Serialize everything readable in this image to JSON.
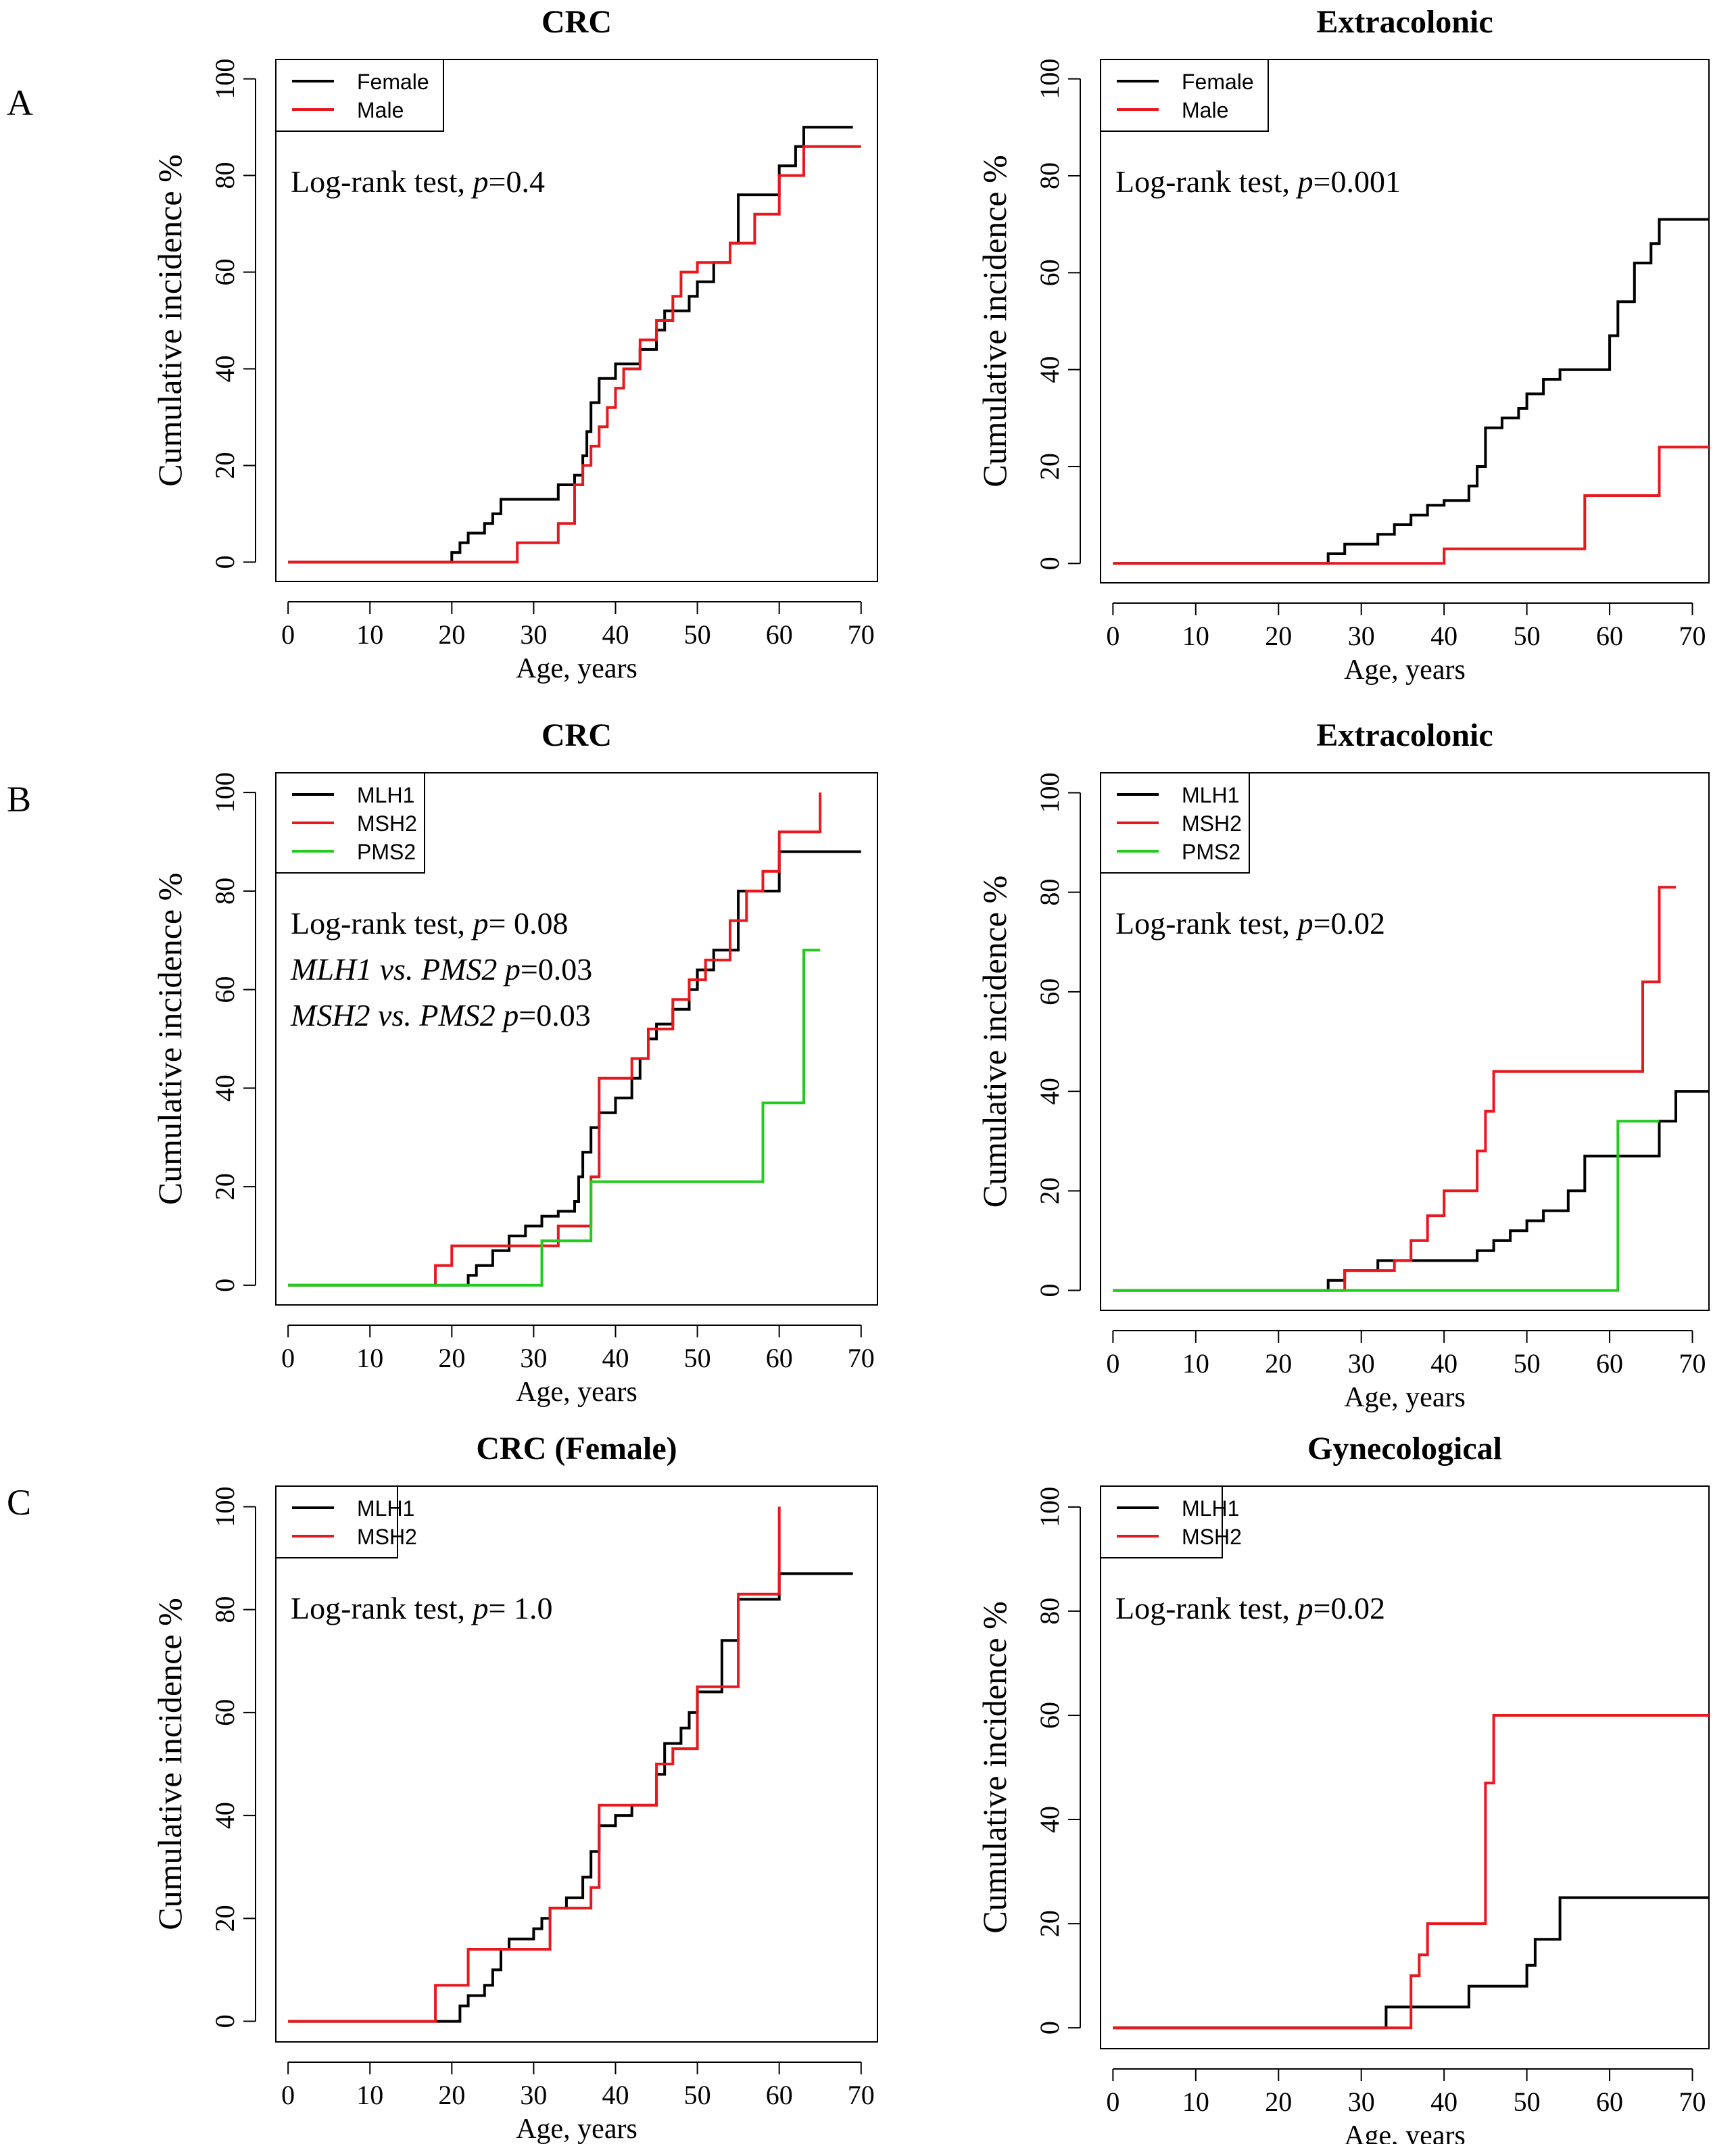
{
  "figure": {
    "panel_labels": [
      "A",
      "B",
      "C"
    ]
  },
  "chart_data": [
    {
      "type": "line",
      "step": true,
      "panel": "A",
      "title": "CRC",
      "xlabel": "Age, years",
      "ylabel": "Cumulative incidence %",
      "xlim": [
        0,
        72
      ],
      "ylim": [
        0,
        100
      ],
      "xticks": [
        "0",
        "10",
        "20",
        "30",
        "40",
        "50",
        "60",
        "70"
      ],
      "yticks": [
        "0",
        "20",
        "40",
        "60",
        "80",
        "100"
      ],
      "legend": {
        "position": "top-left",
        "entries": [
          "Female",
          "Male"
        ]
      },
      "annotations": [
        {
          "pre": "Log-rank test, ",
          "p": "p",
          "post": "=0.4"
        }
      ],
      "series": [
        {
          "name": "Female",
          "color": "#000000",
          "x": [
            0,
            18,
            20,
            21,
            22,
            24,
            25,
            26,
            33,
            35,
            36,
            36.5,
            37,
            38,
            40,
            43,
            45,
            46,
            49,
            50,
            52,
            54,
            55,
            60,
            62,
            63,
            69
          ],
          "y": [
            0,
            0,
            2,
            4,
            6,
            8,
            10,
            13,
            16,
            18,
            22,
            27,
            33,
            38,
            41,
            44,
            48,
            52,
            55,
            58,
            62,
            66,
            76,
            82,
            86,
            90,
            90
          ]
        },
        {
          "name": "Male",
          "color": "#e6191e",
          "x": [
            0,
            27,
            28,
            33,
            35,
            36,
            37,
            38,
            39,
            40,
            41,
            43,
            45,
            47,
            48,
            50,
            54,
            57,
            60,
            63,
            65,
            70
          ],
          "y": [
            0,
            0,
            4,
            8,
            16,
            20,
            24,
            28,
            32,
            36,
            40,
            46,
            50,
            55,
            60,
            62,
            66,
            72,
            80,
            86,
            86,
            86
          ]
        }
      ]
    },
    {
      "type": "line",
      "step": true,
      "panel": "A",
      "title": "Extracolonic",
      "xlabel": "Age, years",
      "ylabel": "Cumulative incidence %",
      "xlim": [
        0,
        72
      ],
      "ylim": [
        0,
        100
      ],
      "xticks": [
        "0",
        "10",
        "20",
        "30",
        "40",
        "50",
        "60",
        "70"
      ],
      "yticks": [
        "0",
        "20",
        "40",
        "60",
        "80",
        "100"
      ],
      "legend": {
        "position": "top-left",
        "entries": [
          "Female",
          "Male"
        ]
      },
      "annotations": [
        {
          "pre": "Log-rank test, ",
          "p": "p",
          "post": "=0.001"
        }
      ],
      "series": [
        {
          "name": "Female",
          "color": "#000000",
          "x": [
            0,
            26,
            28,
            32,
            34,
            36,
            38,
            40,
            43,
            44,
            45,
            47,
            49,
            50,
            52,
            54,
            60,
            61,
            63,
            65,
            66,
            72
          ],
          "y": [
            0,
            2,
            4,
            6,
            8,
            10,
            12,
            13,
            16,
            20,
            28,
            30,
            32,
            35,
            38,
            40,
            47,
            54,
            62,
            66,
            71,
            71
          ]
        },
        {
          "name": "Male",
          "color": "#e6191e",
          "x": [
            0,
            40,
            57,
            66,
            72
          ],
          "y": [
            0,
            3,
            14,
            24,
            24
          ]
        }
      ]
    },
    {
      "type": "line",
      "step": true,
      "panel": "B",
      "title": "CRC",
      "xlabel": "Age, years",
      "ylabel": "Cumulative incidence %",
      "xlim": [
        0,
        72
      ],
      "ylim": [
        0,
        100
      ],
      "xticks": [
        "0",
        "10",
        "20",
        "30",
        "40",
        "50",
        "60",
        "70"
      ],
      "yticks": [
        "0",
        "20",
        "40",
        "60",
        "80",
        "100"
      ],
      "legend": {
        "position": "top-left",
        "entries": [
          "MLH1",
          "MSH2",
          "PMS2"
        ]
      },
      "annotations": [
        {
          "pre": "Log-rank test, ",
          "p": "p",
          "post": "= 0.08"
        },
        {
          "italic": "MLH1 vs. PMS2",
          "p": "p",
          "post": "=0.03"
        },
        {
          "italic": "MSH2 vs. PMS2",
          "p": "p",
          "post": "=0.03"
        }
      ],
      "series": [
        {
          "name": "MLH1",
          "color": "#000000",
          "x": [
            0,
            22,
            23,
            25,
            27,
            29,
            31,
            33,
            35,
            35.5,
            36,
            37,
            38,
            40,
            42,
            43,
            44,
            45,
            47,
            49,
            50,
            52,
            55,
            58,
            60,
            70
          ],
          "y": [
            0,
            2,
            4,
            7,
            10,
            12,
            14,
            15,
            17,
            22,
            27,
            32,
            35,
            38,
            42,
            46,
            50,
            53,
            56,
            60,
            64,
            68,
            80,
            80,
            88,
            88
          ]
        },
        {
          "name": "MSH2",
          "color": "#e6191e",
          "x": [
            0,
            18,
            20,
            25,
            30,
            33,
            37,
            38,
            40,
            42,
            44,
            47,
            49,
            51,
            54,
            56,
            58,
            60,
            62,
            64,
            65
          ],
          "y": [
            0,
            4,
            8,
            8,
            8,
            12,
            22,
            42,
            42,
            46,
            52,
            58,
            62,
            66,
            74,
            80,
            84,
            92,
            92,
            92,
            100
          ]
        },
        {
          "name": "PMS2",
          "color": "#21cc1f",
          "x": [
            0,
            31,
            37,
            58,
            63,
            65
          ],
          "y": [
            0,
            9,
            21,
            37,
            68,
            68
          ]
        }
      ]
    },
    {
      "type": "line",
      "step": true,
      "panel": "B",
      "title": "Extracolonic",
      "xlabel": "Age, years",
      "ylabel": "Cumulative incidence %",
      "xlim": [
        0,
        72
      ],
      "ylim": [
        0,
        100
      ],
      "xticks": [
        "0",
        "10",
        "20",
        "30",
        "40",
        "50",
        "60",
        "70"
      ],
      "yticks": [
        "0",
        "20",
        "40",
        "60",
        "80",
        "100"
      ],
      "legend": {
        "position": "top-left",
        "entries": [
          "MLH1",
          "MSH2",
          "PMS2"
        ]
      },
      "annotations": [
        {
          "pre": "Log-rank test, ",
          "p": "p",
          "post": "=0.02"
        }
      ],
      "series": [
        {
          "name": "MLH1",
          "color": "#000000",
          "x": [
            0,
            26,
            28,
            32,
            34,
            42,
            44,
            46,
            48,
            50,
            52,
            55,
            57,
            61,
            66,
            68,
            72
          ],
          "y": [
            0,
            2,
            4,
            6,
            6,
            6,
            8,
            10,
            12,
            14,
            16,
            20,
            27,
            27,
            34,
            40,
            40
          ]
        },
        {
          "name": "MSH2",
          "color": "#e6191e",
          "x": [
            0,
            28,
            34,
            36,
            38,
            40,
            44,
            45,
            46,
            63,
            64,
            66,
            68
          ],
          "y": [
            0,
            4,
            6,
            10,
            15,
            20,
            28,
            36,
            44,
            44,
            62,
            81,
            81
          ]
        },
        {
          "name": "PMS2",
          "color": "#21cc1f",
          "x": [
            0,
            61,
            66
          ],
          "y": [
            0,
            34,
            34
          ]
        }
      ]
    },
    {
      "type": "line",
      "step": true,
      "panel": "C",
      "title": "CRC (Female)",
      "xlabel": "Age, years",
      "ylabel": "Cumulative incidence %",
      "xlim": [
        0,
        72
      ],
      "ylim": [
        0,
        100
      ],
      "xticks": [
        "0",
        "10",
        "20",
        "30",
        "40",
        "50",
        "60",
        "70"
      ],
      "yticks": [
        "0",
        "20",
        "40",
        "60",
        "80",
        "100"
      ],
      "legend": {
        "position": "top-left",
        "entries": [
          "MLH1",
          "MSH2"
        ]
      },
      "annotations": [
        {
          "pre": "Log-rank test, ",
          "p": "p",
          "post": "= 1.0"
        }
      ],
      "series": [
        {
          "name": "MLH1",
          "color": "#000000",
          "x": [
            0,
            21,
            22,
            24,
            25,
            26,
            27,
            30,
            31,
            32,
            34,
            36,
            37,
            38,
            40,
            42,
            45,
            46,
            48,
            49,
            50,
            53,
            55,
            60,
            69
          ],
          "y": [
            0,
            3,
            5,
            7,
            10,
            14,
            16,
            18,
            20,
            22,
            24,
            28,
            33,
            38,
            40,
            42,
            48,
            54,
            57,
            60,
            64,
            74,
            82,
            87,
            87
          ]
        },
        {
          "name": "MSH2",
          "color": "#e6191e",
          "x": [
            0,
            18,
            22,
            26,
            32,
            35,
            37,
            38,
            40,
            45,
            47,
            50,
            55,
            60
          ],
          "y": [
            0,
            7,
            14,
            14,
            22,
            22,
            26,
            42,
            42,
            50,
            53,
            65,
            83,
            100
          ]
        }
      ]
    },
    {
      "type": "line",
      "step": true,
      "panel": "C",
      "title": "Gynecological",
      "xlabel": "Age, years",
      "ylabel": "Cumulative incidence %",
      "xlim": [
        0,
        72
      ],
      "ylim": [
        0,
        100
      ],
      "xticks": [
        "0",
        "10",
        "20",
        "30",
        "40",
        "50",
        "60",
        "70"
      ],
      "yticks": [
        "0",
        "20",
        "40",
        "60",
        "80",
        "100"
      ],
      "legend": {
        "position": "top-left",
        "entries": [
          "MLH1",
          "MSH2"
        ]
      },
      "annotations": [
        {
          "pre": "Log-rank test, ",
          "p": "p",
          "post": "=0.02"
        }
      ],
      "series": [
        {
          "name": "MLH1",
          "color": "#000000",
          "x": [
            0,
            33,
            42,
            43,
            48,
            50,
            51,
            54,
            72
          ],
          "y": [
            0,
            4,
            4,
            8,
            8,
            12,
            17,
            25,
            25
          ]
        },
        {
          "name": "MSH2",
          "color": "#e6191e",
          "x": [
            0,
            36,
            37,
            38,
            45,
            46,
            72
          ],
          "y": [
            0,
            10,
            14,
            20,
            47,
            60,
            60
          ]
        }
      ]
    }
  ]
}
